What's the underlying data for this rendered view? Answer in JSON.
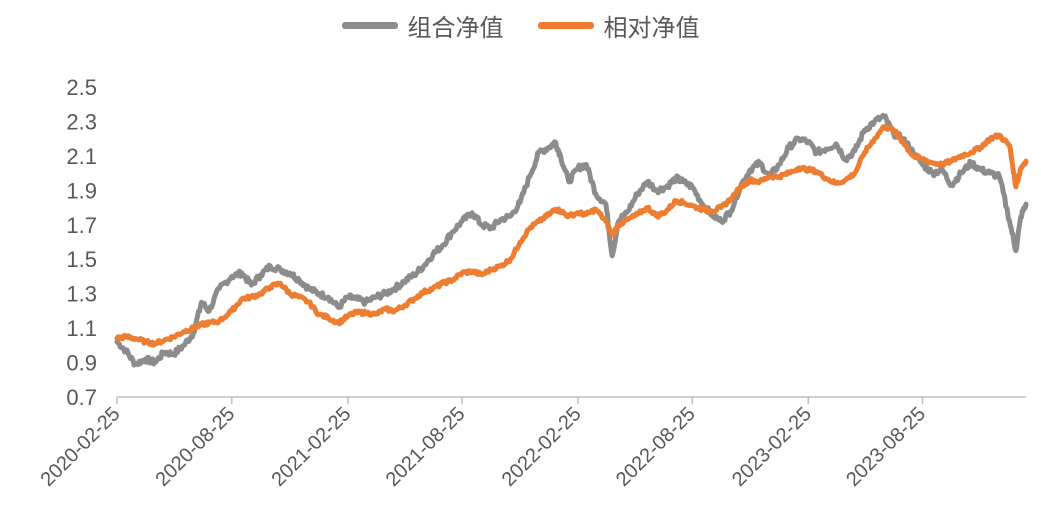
{
  "chart_data": {
    "type": "line",
    "title": "",
    "xlabel": "",
    "ylabel": "",
    "ylim": [
      0.7,
      2.5
    ],
    "yticks": [
      "0.7",
      "0.9",
      "1.1",
      "1.3",
      "1.5",
      "1.7",
      "1.9",
      "2.1",
      "2.3",
      "2.5"
    ],
    "xlim": [
      "2020-02-25",
      "2024-02-05"
    ],
    "xticks": [
      "2020-02-25",
      "2020-08-25",
      "2021-02-25",
      "2021-08-25",
      "2022-02-25",
      "2022-08-25",
      "2023-02-25",
      "2023-08-25"
    ],
    "legend_position": "top-center",
    "grid": false,
    "series": [
      {
        "name": "组合净值",
        "color": "#8c8c8c",
        "points": [
          [
            "2020-02-25",
            1.02
          ],
          [
            "2020-03-10",
            0.97
          ],
          [
            "2020-03-25",
            0.89
          ],
          [
            "2020-04-10",
            0.92
          ],
          [
            "2020-04-25",
            0.9
          ],
          [
            "2020-05-10",
            0.96
          ],
          [
            "2020-05-25",
            0.95
          ],
          [
            "2020-06-10",
            1.0
          ],
          [
            "2020-06-25",
            1.07
          ],
          [
            "2020-07-08",
            1.25
          ],
          [
            "2020-07-20",
            1.2
          ],
          [
            "2020-08-05",
            1.33
          ],
          [
            "2020-08-25",
            1.4
          ],
          [
            "2020-09-10",
            1.42
          ],
          [
            "2020-09-25",
            1.35
          ],
          [
            "2020-10-10",
            1.41
          ],
          [
            "2020-10-25",
            1.46
          ],
          [
            "2020-11-10",
            1.44
          ],
          [
            "2020-11-25",
            1.42
          ],
          [
            "2020-12-10",
            1.38
          ],
          [
            "2020-12-25",
            1.33
          ],
          [
            "2021-01-10",
            1.3
          ],
          [
            "2021-01-25",
            1.28
          ],
          [
            "2021-02-10",
            1.22
          ],
          [
            "2021-02-25",
            1.28
          ],
          [
            "2021-03-10",
            1.27
          ],
          [
            "2021-03-25",
            1.25
          ],
          [
            "2021-04-10",
            1.28
          ],
          [
            "2021-04-25",
            1.3
          ],
          [
            "2021-05-10",
            1.33
          ],
          [
            "2021-05-25",
            1.37
          ],
          [
            "2021-06-10",
            1.41
          ],
          [
            "2021-06-25",
            1.46
          ],
          [
            "2021-07-10",
            1.53
          ],
          [
            "2021-07-25",
            1.58
          ],
          [
            "2021-08-10",
            1.66
          ],
          [
            "2021-08-25",
            1.72
          ],
          [
            "2021-09-10",
            1.77
          ],
          [
            "2021-09-25",
            1.7
          ],
          [
            "2021-10-10",
            1.68
          ],
          [
            "2021-10-25",
            1.73
          ],
          [
            "2021-11-10",
            1.75
          ],
          [
            "2021-11-25",
            1.83
          ],
          [
            "2021-12-10",
            1.98
          ],
          [
            "2021-12-25",
            2.12
          ],
          [
            "2022-01-10",
            2.15
          ],
          [
            "2022-01-20",
            2.18
          ],
          [
            "2022-01-28",
            2.1
          ],
          [
            "2022-02-10",
            1.95
          ],
          [
            "2022-02-25",
            2.03
          ],
          [
            "2022-03-10",
            2.05
          ],
          [
            "2022-03-25",
            1.88
          ],
          [
            "2022-04-10",
            1.82
          ],
          [
            "2022-04-20",
            1.52
          ],
          [
            "2022-04-30",
            1.72
          ],
          [
            "2022-05-15",
            1.78
          ],
          [
            "2022-05-30",
            1.88
          ],
          [
            "2022-06-15",
            1.95
          ],
          [
            "2022-06-30",
            1.9
          ],
          [
            "2022-07-15",
            1.92
          ],
          [
            "2022-07-30",
            1.97
          ],
          [
            "2022-08-10",
            1.95
          ],
          [
            "2022-08-25",
            1.92
          ],
          [
            "2022-09-10",
            1.82
          ],
          [
            "2022-09-25",
            1.76
          ],
          [
            "2022-10-10",
            1.72
          ],
          [
            "2022-10-25",
            1.78
          ],
          [
            "2022-11-10",
            1.93
          ],
          [
            "2022-11-25",
            2.02
          ],
          [
            "2022-12-10",
            2.06
          ],
          [
            "2022-12-25",
            1.98
          ],
          [
            "2023-01-10",
            2.05
          ],
          [
            "2023-01-25",
            2.15
          ],
          [
            "2023-02-10",
            2.2
          ],
          [
            "2023-02-25",
            2.18
          ],
          [
            "2023-03-10",
            2.12
          ],
          [
            "2023-03-25",
            2.14
          ],
          [
            "2023-04-10",
            2.17
          ],
          [
            "2023-04-25",
            2.08
          ],
          [
            "2023-05-10",
            2.13
          ],
          [
            "2023-05-25",
            2.25
          ],
          [
            "2023-06-10",
            2.3
          ],
          [
            "2023-06-25",
            2.33
          ],
          [
            "2023-07-10",
            2.23
          ],
          [
            "2023-07-25",
            2.2
          ],
          [
            "2023-08-10",
            2.12
          ],
          [
            "2023-08-25",
            2.05
          ],
          [
            "2023-09-10",
            2.0
          ],
          [
            "2023-09-25",
            2.02
          ],
          [
            "2023-10-10",
            1.93
          ],
          [
            "2023-10-25",
            2.0
          ],
          [
            "2023-11-10",
            2.06
          ],
          [
            "2023-11-25",
            2.02
          ],
          [
            "2023-12-10",
            2.0
          ],
          [
            "2023-12-25",
            1.98
          ],
          [
            "2024-01-10",
            1.72
          ],
          [
            "2024-01-20",
            1.55
          ],
          [
            "2024-01-28",
            1.75
          ],
          [
            "2024-02-05",
            1.82
          ]
        ]
      },
      {
        "name": "相对净值",
        "color": "#ed7d31",
        "points": [
          [
            "2020-02-25",
            1.04
          ],
          [
            "2020-03-10",
            1.05
          ],
          [
            "2020-03-25",
            1.04
          ],
          [
            "2020-04-10",
            1.02
          ],
          [
            "2020-04-25",
            1.01
          ],
          [
            "2020-05-10",
            1.03
          ],
          [
            "2020-05-25",
            1.05
          ],
          [
            "2020-06-10",
            1.08
          ],
          [
            "2020-06-25",
            1.1
          ],
          [
            "2020-07-08",
            1.12
          ],
          [
            "2020-07-20",
            1.13
          ],
          [
            "2020-08-05",
            1.14
          ],
          [
            "2020-08-25",
            1.2
          ],
          [
            "2020-09-10",
            1.27
          ],
          [
            "2020-09-25",
            1.28
          ],
          [
            "2020-10-10",
            1.3
          ],
          [
            "2020-10-25",
            1.34
          ],
          [
            "2020-11-10",
            1.36
          ],
          [
            "2020-11-25",
            1.3
          ],
          [
            "2020-12-10",
            1.28
          ],
          [
            "2020-12-25",
            1.25
          ],
          [
            "2021-01-10",
            1.18
          ],
          [
            "2021-01-25",
            1.16
          ],
          [
            "2021-02-10",
            1.13
          ],
          [
            "2021-02-25",
            1.17
          ],
          [
            "2021-03-10",
            1.19
          ],
          [
            "2021-03-25",
            1.19
          ],
          [
            "2021-04-10",
            1.18
          ],
          [
            "2021-04-25",
            1.21
          ],
          [
            "2021-05-10",
            1.2
          ],
          [
            "2021-05-25",
            1.23
          ],
          [
            "2021-06-10",
            1.27
          ],
          [
            "2021-06-25",
            1.31
          ],
          [
            "2021-07-10",
            1.33
          ],
          [
            "2021-07-25",
            1.36
          ],
          [
            "2021-08-10",
            1.38
          ],
          [
            "2021-08-25",
            1.42
          ],
          [
            "2021-09-10",
            1.43
          ],
          [
            "2021-09-25",
            1.41
          ],
          [
            "2021-10-10",
            1.44
          ],
          [
            "2021-10-25",
            1.46
          ],
          [
            "2021-11-10",
            1.5
          ],
          [
            "2021-11-25",
            1.6
          ],
          [
            "2021-12-10",
            1.68
          ],
          [
            "2021-12-25",
            1.72
          ],
          [
            "2022-01-10",
            1.76
          ],
          [
            "2022-01-20",
            1.79
          ],
          [
            "2022-01-28",
            1.78
          ],
          [
            "2022-02-10",
            1.75
          ],
          [
            "2022-02-25",
            1.77
          ],
          [
            "2022-03-10",
            1.76
          ],
          [
            "2022-03-25",
            1.79
          ],
          [
            "2022-04-10",
            1.72
          ],
          [
            "2022-04-20",
            1.64
          ],
          [
            "2022-04-30",
            1.7
          ],
          [
            "2022-05-15",
            1.73
          ],
          [
            "2022-05-30",
            1.76
          ],
          [
            "2022-06-15",
            1.8
          ],
          [
            "2022-06-30",
            1.75
          ],
          [
            "2022-07-15",
            1.78
          ],
          [
            "2022-07-30",
            1.84
          ],
          [
            "2022-08-10",
            1.83
          ],
          [
            "2022-08-25",
            1.81
          ],
          [
            "2022-09-10",
            1.79
          ],
          [
            "2022-09-25",
            1.78
          ],
          [
            "2022-10-10",
            1.8
          ],
          [
            "2022-10-25",
            1.85
          ],
          [
            "2022-11-10",
            1.92
          ],
          [
            "2022-11-25",
            1.96
          ],
          [
            "2022-12-10",
            1.95
          ],
          [
            "2022-12-25",
            1.98
          ],
          [
            "2023-01-10",
            1.98
          ],
          [
            "2023-01-25",
            2.0
          ],
          [
            "2023-02-10",
            2.03
          ],
          [
            "2023-02-25",
            2.02
          ],
          [
            "2023-03-10",
            2.01
          ],
          [
            "2023-03-25",
            1.97
          ],
          [
            "2023-04-10",
            1.94
          ],
          [
            "2023-04-25",
            1.96
          ],
          [
            "2023-05-10",
            2.0
          ],
          [
            "2023-05-25",
            2.12
          ],
          [
            "2023-06-10",
            2.2
          ],
          [
            "2023-06-25",
            2.27
          ],
          [
            "2023-07-10",
            2.25
          ],
          [
            "2023-07-25",
            2.18
          ],
          [
            "2023-08-10",
            2.1
          ],
          [
            "2023-08-25",
            2.08
          ],
          [
            "2023-09-10",
            2.06
          ],
          [
            "2023-09-25",
            2.05
          ],
          [
            "2023-10-10",
            2.07
          ],
          [
            "2023-10-25",
            2.1
          ],
          [
            "2023-11-10",
            2.12
          ],
          [
            "2023-11-25",
            2.15
          ],
          [
            "2023-12-10",
            2.2
          ],
          [
            "2023-12-25",
            2.22
          ],
          [
            "2024-01-10",
            2.16
          ],
          [
            "2024-01-20",
            1.92
          ],
          [
            "2024-01-28",
            2.03
          ],
          [
            "2024-02-05",
            2.07
          ]
        ]
      }
    ]
  }
}
